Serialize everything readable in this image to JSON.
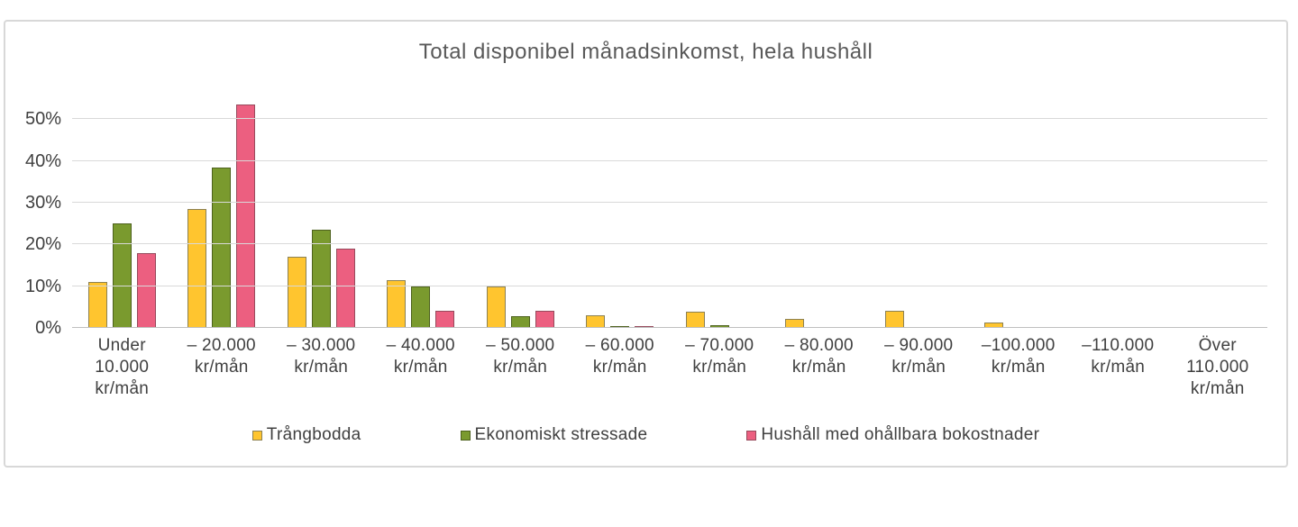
{
  "chart_data": {
    "type": "bar",
    "title": "Total disponibel månadsinkomst, hela hushåll",
    "xlabel": "",
    "ylabel": "",
    "ylim": [
      0,
      55
    ],
    "yticks": [
      0,
      10,
      20,
      30,
      40,
      50
    ],
    "ytick_suffix": "%",
    "grid": true,
    "legend_position": "bottom",
    "categories": [
      "Under 10.000 kr/mån",
      "– 20.000 kr/mån",
      "– 30.000 kr/mån",
      "– 40.000 kr/mån",
      "– 50.000 kr/mån",
      "– 60.000 kr/mån",
      "– 70.000 kr/mån",
      "– 80.000 kr/mån",
      "– 90.000 kr/mån",
      "–100.000 kr/mån",
      "–110.000 kr/mån",
      "Över 110.000 kr/mån"
    ],
    "category_label_lines": [
      [
        "Under",
        "10.000",
        "kr/mån"
      ],
      [
        "– 20.000",
        "kr/mån"
      ],
      [
        "– 30.000",
        "kr/mån"
      ],
      [
        "– 40.000",
        "kr/mån"
      ],
      [
        "– 50.000",
        "kr/mån"
      ],
      [
        "– 60.000",
        "kr/mån"
      ],
      [
        "– 70.000",
        "kr/mån"
      ],
      [
        "– 80.000",
        "kr/mån"
      ],
      [
        "– 90.000",
        "kr/mån"
      ],
      [
        "–100.000",
        "kr/mån"
      ],
      [
        "–110.000",
        "kr/mån"
      ],
      [
        "Över",
        "110.000",
        "kr/mån"
      ]
    ],
    "series": [
      {
        "name": "Trångbodda",
        "color": "#FFC52F",
        "border_color": "#8c8153",
        "values": [
          11,
          28.5,
          17,
          11.5,
          10,
          3,
          3.8,
          2.2,
          4,
          1.2,
          0,
          0
        ]
      },
      {
        "name": "Ekonomiskt stressade",
        "color": "#7A9A2E",
        "border_color": "#4d611d",
        "values": [
          25,
          38.5,
          23.5,
          10,
          2.7,
          0.4,
          0.6,
          0,
          0,
          0,
          0,
          0
        ]
      },
      {
        "name": "Hushåll med ohållbara bokostnader",
        "color": "#EC5F80",
        "border_color": "#964a5c",
        "values": [
          18,
          53.5,
          19,
          4,
          4,
          0.4,
          0,
          0,
          0,
          0,
          0,
          0
        ]
      }
    ],
    "colors": {
      "title_text": "#595959",
      "axis_text": "#404040",
      "gridline": "#d9d9d9",
      "axis_line": "#bfbfbf",
      "card_border": "#d8d8d8"
    }
  }
}
